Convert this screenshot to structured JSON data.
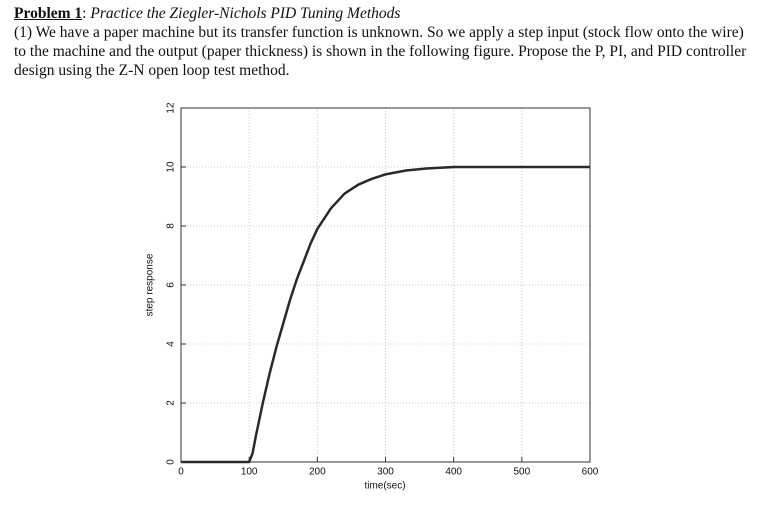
{
  "problem": {
    "label": "Problem 1",
    "separator": ": ",
    "title": "Practice the Ziegler-Nichols PID Tuning Methods",
    "body": "(1) We have a paper machine but its transfer function is unknown.  So we apply a step input (stock flow onto the wire) to the machine and the output (paper thickness) is shown in the following figure.  Propose the P, PI, and PID controller design using the Z-N open loop test method."
  },
  "chart_data": {
    "type": "line",
    "x_label": "time(sec)",
    "y_label": "step response",
    "x": [
      0,
      100,
      105,
      110,
      120,
      130,
      140,
      150,
      160,
      170,
      180,
      190,
      200,
      220,
      240,
      260,
      280,
      300,
      330,
      360,
      400,
      450,
      500,
      600
    ],
    "series": [
      {
        "name": "step response",
        "color": "#2a2a2a",
        "values": [
          0,
          0,
          0.3,
          0.9,
          2.0,
          3.0,
          3.9,
          4.7,
          5.5,
          6.2,
          6.8,
          7.4,
          7.9,
          8.6,
          9.1,
          9.4,
          9.6,
          9.75,
          9.88,
          9.95,
          10,
          10,
          10,
          10
        ]
      }
    ],
    "xlim": [
      0,
      600
    ],
    "ylim": [
      0,
      12
    ],
    "xticks": [
      0,
      100,
      200,
      300,
      400,
      500,
      600
    ],
    "yticks": [
      0,
      2,
      4,
      6,
      8,
      10,
      12
    ],
    "grid": true
  }
}
